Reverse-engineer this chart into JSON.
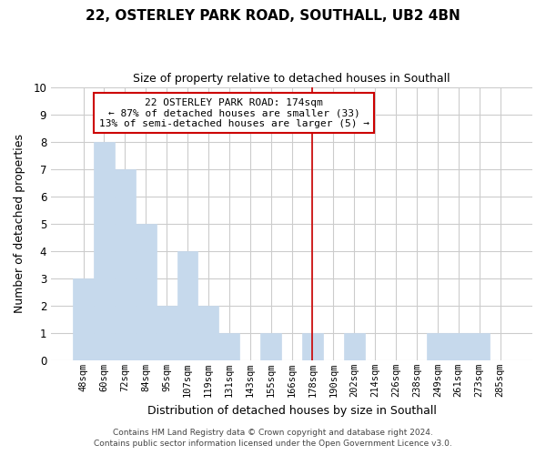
{
  "title": "22, OSTERLEY PARK ROAD, SOUTHALL, UB2 4BN",
  "subtitle": "Size of property relative to detached houses in Southall",
  "xlabel": "Distribution of detached houses by size in Southall",
  "ylabel": "Number of detached properties",
  "bar_labels": [
    "48sqm",
    "60sqm",
    "72sqm",
    "84sqm",
    "95sqm",
    "107sqm",
    "119sqm",
    "131sqm",
    "143sqm",
    "155sqm",
    "166sqm",
    "178sqm",
    "190sqm",
    "202sqm",
    "214sqm",
    "226sqm",
    "238sqm",
    "249sqm",
    "261sqm",
    "273sqm",
    "285sqm"
  ],
  "bar_heights": [
    3,
    8,
    7,
    5,
    2,
    4,
    2,
    1,
    0,
    1,
    0,
    1,
    0,
    1,
    0,
    0,
    0,
    1,
    1,
    1,
    0
  ],
  "bar_color": "#c6d9ec",
  "bar_edge_color": "#c6d9ec",
  "grid_color": "#cccccc",
  "background_color": "#ffffff",
  "vline_x": 11.0,
  "vline_color": "#cc0000",
  "ylim": [
    0,
    10
  ],
  "yticks": [
    0,
    1,
    2,
    3,
    4,
    5,
    6,
    7,
    8,
    9,
    10
  ],
  "annotation_title": "22 OSTERLEY PARK ROAD: 174sqm",
  "annotation_line1": "← 87% of detached houses are smaller (33)",
  "annotation_line2": "13% of semi-detached houses are larger (5) →",
  "footnote1": "Contains HM Land Registry data © Crown copyright and database right 2024.",
  "footnote2": "Contains public sector information licensed under the Open Government Licence v3.0."
}
